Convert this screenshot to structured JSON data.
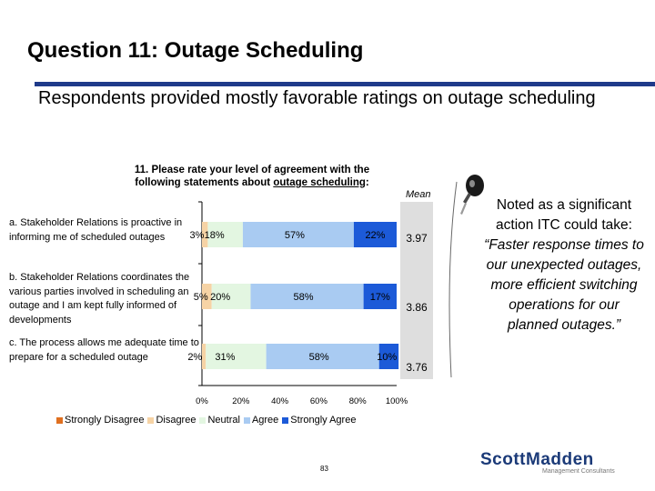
{
  "slide": {
    "title": "Question 11:  Outage Scheduling",
    "subtitle": "Respondents provided mostly favorable ratings on outage scheduling",
    "page_number": "83"
  },
  "chart": {
    "title_line1": "11.  Please rate your level of agreement with the",
    "title_line2_pre": "following statements about ",
    "title_line2_u": "outage scheduling",
    "title_line2_post": ":",
    "mean_header": "Mean"
  },
  "callout": {
    "line_intro": "Noted as a significant action ITC could take:",
    "quote": "“Faster response times to our unexpected outages, more efficient switching operations for our planned outages.”"
  },
  "logo": {
    "name": "ScottMadden",
    "tagline": "Management Consultants"
  },
  "colors": {
    "strongly_disagree": "#e07020",
    "disagree": "#f6d3a5",
    "neutral": "#e3f6e1",
    "agree": "#a9cbf2",
    "strongly_agree": "#1c5ad8",
    "rule": "#1f3a8a",
    "mean_panel": "#dedede"
  },
  "icon": "microphone-icon",
  "chart_data": {
    "type": "bar",
    "orientation": "horizontal-stacked-100",
    "categories": [
      "a. Stakeholder Relations is proactive in informing me of scheduled outages",
      "b. Stakeholder Relations coordinates the various parties involved in scheduling an outage and I am kept fully informed of developments",
      "c. The process allows me adequate time to prepare for a scheduled outage"
    ],
    "series": [
      {
        "name": "Strongly Disagree",
        "values": [
          0,
          0,
          0
        ]
      },
      {
        "name": "Disagree",
        "values": [
          3,
          5,
          2
        ]
      },
      {
        "name": "Neutral",
        "values": [
          18,
          20,
          31
        ]
      },
      {
        "name": "Agree",
        "values": [
          57,
          58,
          58
        ]
      },
      {
        "name": "Strongly Agree",
        "values": [
          22,
          17,
          10
        ]
      }
    ],
    "data_labels": [
      [
        "3%",
        "18%",
        "57%",
        "22%"
      ],
      [
        "5%",
        "20%",
        "58%",
        "17%"
      ],
      [
        "2%",
        "31%",
        "58%",
        "10%"
      ]
    ],
    "means": [
      "3.97",
      "3.86",
      "3.76"
    ],
    "xlim": [
      0,
      100
    ],
    "x_ticks": [
      "0%",
      "20%",
      "40%",
      "60%",
      "80%",
      "100%"
    ],
    "legend_position": "bottom",
    "grid": false
  }
}
